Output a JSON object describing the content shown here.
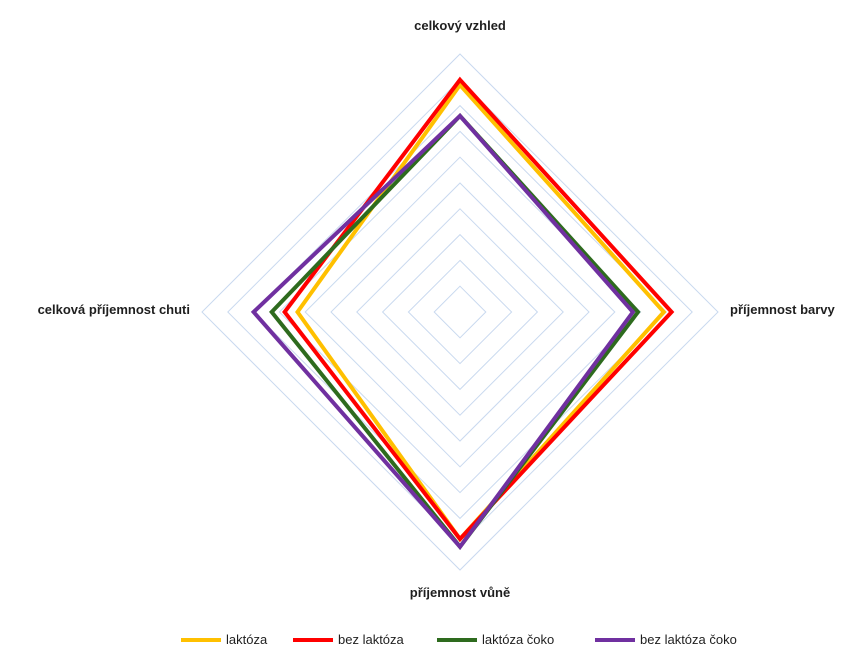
{
  "chart_data": {
    "type": "radar",
    "axes": [
      "celkový vzhled",
      "příjemnost barvy",
      "příjemnost vůně",
      "celková příjemnost chuti"
    ],
    "rlim": [
      0,
      10
    ],
    "grid_rings": 10,
    "grid": true,
    "legend_position": "bottom",
    "series": [
      {
        "name": "laktóza",
        "values": [
          8.8,
          7.9,
          8.8,
          6.3
        ],
        "color": "#ffc000"
      },
      {
        "name": "bez laktóza",
        "values": [
          9.0,
          8.2,
          8.8,
          6.8
        ],
        "color": "#ff0000"
      },
      {
        "name": "laktóza čoko",
        "values": [
          7.6,
          6.9,
          9.1,
          7.3
        ],
        "color": "#2e6b1e"
      },
      {
        "name": "bez laktóza čoko",
        "values": [
          7.6,
          6.7,
          9.1,
          8.0
        ],
        "color": "#7030a0"
      }
    ],
    "grid_color": "#c9d9ef"
  }
}
